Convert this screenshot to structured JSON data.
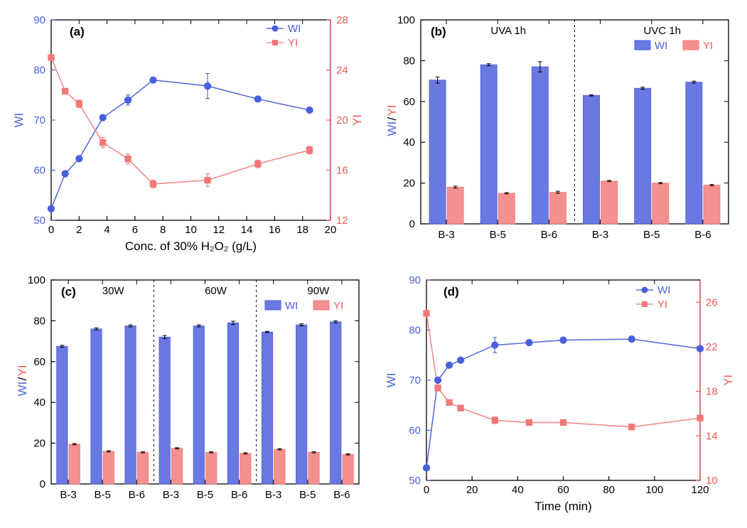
{
  "colors": {
    "wi_blue": "#5a6fe0",
    "yi_red": "#f28b8b",
    "marker_blue": "#4a5fdc",
    "marker_red": "#f07878",
    "axis_black": "#000000",
    "yi_axis_red": "#ef5a5a",
    "bar_blue": "#6a78e2",
    "bar_red": "#f49090",
    "bg": "#ffffff"
  },
  "panel_a": {
    "label": "(a)",
    "xlabel": "Conc. of 30% H₂O₂ (g/L)",
    "ylabel_left": "WI",
    "ylabel_right": "YI",
    "legend": [
      "WI",
      "YI"
    ],
    "xlim": [
      0,
      20
    ],
    "xtick_step": 2,
    "ylim_left": [
      50,
      90
    ],
    "ytick_left_step": 10,
    "ylim_right": [
      12,
      28
    ],
    "ytick_right_step": 4,
    "wi_x": [
      0,
      1,
      2,
      3.7,
      5.5,
      7.3,
      11.2,
      14.8,
      18.5
    ],
    "wi_y": [
      52.3,
      59.3,
      62.3,
      70.5,
      74.0,
      78.0,
      76.8,
      74.2,
      72.0
    ],
    "wi_err": [
      0,
      0.2,
      0.3,
      0.5,
      1.0,
      0.5,
      2.5,
      0.3,
      0.2
    ],
    "yi_x": [
      0,
      1,
      2,
      3.7,
      5.5,
      7.3,
      11.2,
      14.8,
      18.5
    ],
    "yi_y": [
      25.0,
      22.3,
      21.3,
      18.2,
      16.9,
      14.9,
      15.2,
      16.5,
      17.6
    ],
    "yi_err": [
      0.2,
      0.2,
      0.3,
      0.4,
      0.4,
      0.3,
      0.5,
      0.3,
      0.3
    ]
  },
  "panel_b": {
    "label": "(b)",
    "sections": [
      "UVA 1h",
      "UVC 1h"
    ],
    "ylabel": "WI/YI",
    "legend": [
      "WI",
      "YI"
    ],
    "ylim": [
      0,
      100
    ],
    "ytick_step": 20,
    "cats": [
      "B-3",
      "B-5",
      "B-6",
      "B-3",
      "B-5",
      "B-6"
    ],
    "wi": [
      70.5,
      78.0,
      77.0,
      63.0,
      66.5,
      69.5
    ],
    "wi_err": [
      1.5,
      0.5,
      2.5,
      0.3,
      0.5,
      0.5
    ],
    "yi": [
      18.0,
      15.0,
      15.5,
      21.0,
      20.0,
      19.0
    ],
    "yi_err": [
      0.5,
      0.3,
      0.5,
      0.3,
      0.3,
      0.3
    ],
    "divider_after_index": 3
  },
  "panel_c": {
    "label": "(c)",
    "sections": [
      "30W",
      "60W",
      "90W"
    ],
    "ylabel": "WI/YI",
    "legend": [
      "WI",
      "YI"
    ],
    "ylim": [
      0,
      100
    ],
    "ytick_step": 20,
    "cats": [
      "B-3",
      "B-5",
      "B-6",
      "B-3",
      "B-5",
      "B-6",
      "B-3",
      "B-5",
      "B-6"
    ],
    "wi": [
      67.5,
      76.0,
      77.5,
      72.0,
      77.5,
      79.0,
      74.5,
      78.0,
      79.5
    ],
    "wi_err": [
      0.5,
      0.5,
      0.5,
      0.8,
      0.5,
      0.8,
      0.3,
      0.5,
      0.5
    ],
    "yi": [
      19.5,
      16.0,
      15.5,
      17.5,
      15.5,
      15.0,
      17.0,
      15.5,
      14.5
    ],
    "yi_err": [
      0.3,
      0.3,
      0.3,
      0.3,
      0.3,
      0.3,
      0.3,
      0.3,
      0.3
    ],
    "dividers_after_index": [
      3,
      6
    ]
  },
  "panel_d": {
    "label": "(d)",
    "xlabel": "Time (min)",
    "ylabel_left": "WI",
    "ylabel_right": "YI",
    "legend": [
      "WI",
      "YI"
    ],
    "xlim": [
      0,
      120
    ],
    "xtick_step": 20,
    "ylim_left": [
      50,
      90
    ],
    "ytick_left_step": 10,
    "ylim_right": [
      10,
      28
    ],
    "ytick_right_step": 4,
    "wi_x": [
      0,
      5,
      10,
      15,
      30,
      45,
      60,
      90,
      120
    ],
    "wi_y": [
      52.5,
      70.0,
      73.0,
      74.0,
      77.0,
      77.5,
      78.0,
      78.2,
      76.3
    ],
    "wi_err": [
      0.2,
      0.5,
      0.3,
      0.3,
      1.5,
      0.3,
      0.3,
      0.3,
      0.3
    ],
    "yi_x": [
      0,
      5,
      10,
      15,
      30,
      45,
      60,
      90,
      120
    ],
    "yi_y": [
      25.0,
      18.3,
      17.0,
      16.5,
      15.4,
      15.2,
      15.2,
      14.8,
      15.6
    ],
    "yi_err": [
      0.2,
      0.2,
      0.2,
      0.2,
      0.3,
      0.2,
      0.2,
      0.2,
      0.2
    ]
  },
  "fontsize": {
    "axis_label": 17,
    "tick": 15,
    "panel_label": 17,
    "legend": 15,
    "section": 15
  }
}
